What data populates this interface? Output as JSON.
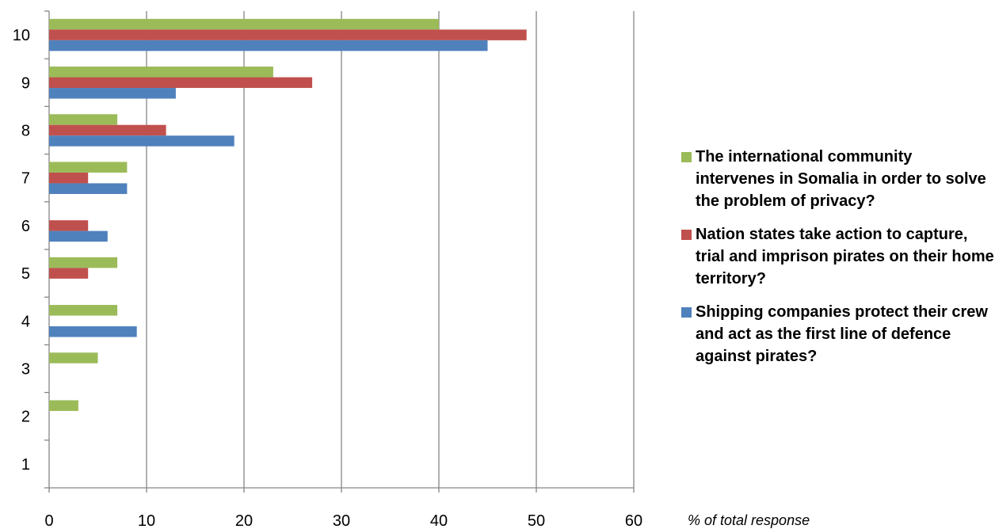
{
  "chart_data": {
    "type": "bar",
    "orientation": "horizontal",
    "categories": [
      "1",
      "2",
      "3",
      "4",
      "5",
      "6",
      "7",
      "8",
      "9",
      "10"
    ],
    "series": [
      {
        "name": "The international community intervenes in Somalia in order to solve the problem of privacy?",
        "color": "#9bbb59",
        "values": [
          0,
          3,
          5,
          7,
          7,
          0,
          8,
          7,
          23,
          40
        ]
      },
      {
        "name": "Nation states take action to capture, trial and imprison pirates on their home territory?",
        "color": "#c0504d",
        "values": [
          0,
          0,
          0,
          0,
          4,
          4,
          4,
          12,
          27,
          49
        ]
      },
      {
        "name": "Shipping companies protect their crew and act as the first line of defence against pirates?",
        "color": "#4f81bd",
        "values": [
          0,
          0,
          0,
          9,
          0,
          6,
          8,
          19,
          13,
          45
        ]
      }
    ],
    "xlim": [
      0,
      60
    ],
    "xticks": [
      "0",
      "10",
      "20",
      "30",
      "40",
      "50",
      "60"
    ],
    "xlabel": "% of total response",
    "ylabel": "",
    "grid": "vertical",
    "legend_position": "right"
  }
}
